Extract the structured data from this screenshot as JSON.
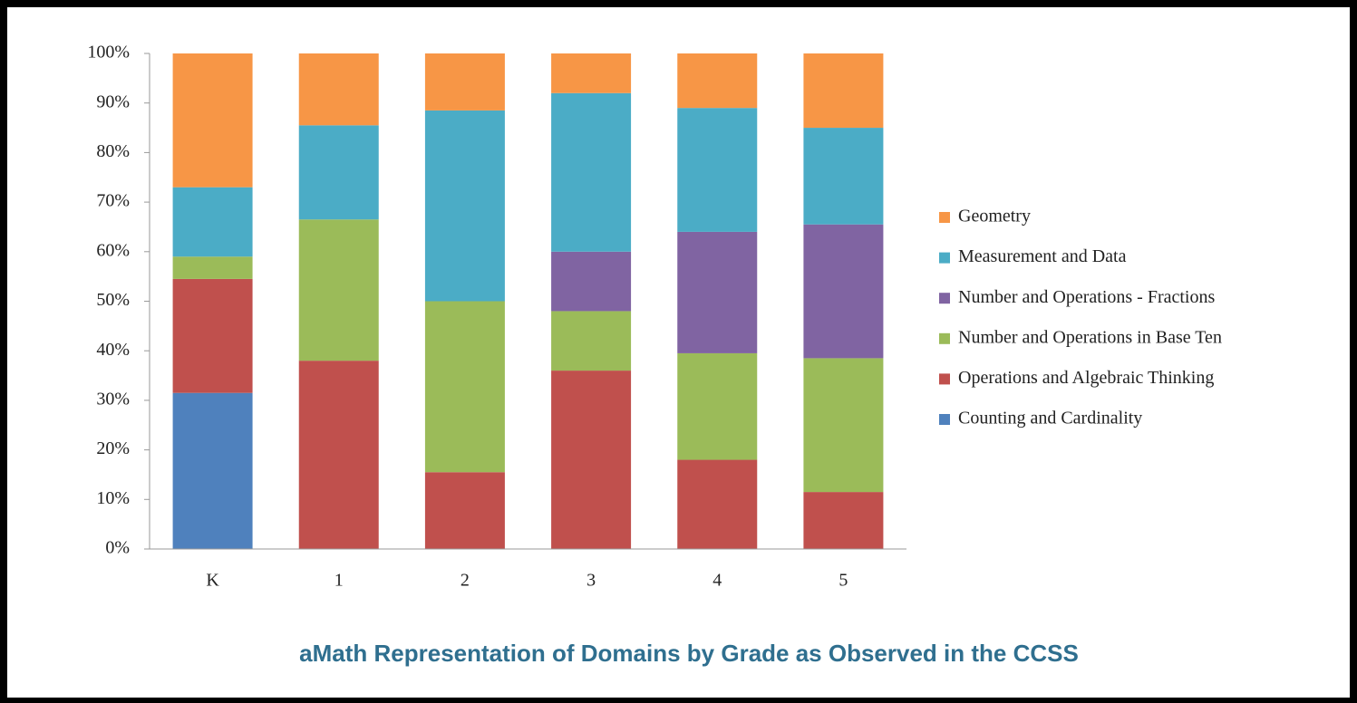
{
  "chart_data": {
    "type": "stacked_bar",
    "title": "aMath Representation of Domains by Grade as Observed in the CCSS",
    "categories": [
      "K",
      "1",
      "2",
      "3",
      "4",
      "5"
    ],
    "series": [
      {
        "name": "Counting and Cardinality",
        "color": "#4f81bd",
        "values": [
          31.5,
          0,
          0,
          0,
          0,
          0
        ]
      },
      {
        "name": "Operations and Algebraic Thinking",
        "color": "#c0504d",
        "values": [
          23,
          38,
          15.5,
          36,
          18,
          11.5
        ]
      },
      {
        "name": "Number and Operations in Base Ten",
        "color": "#9bbb59",
        "values": [
          4.5,
          28.5,
          34.5,
          12,
          21.5,
          27
        ]
      },
      {
        "name": "Number and Operations - Fractions",
        "color": "#8064a2",
        "values": [
          0,
          0,
          0,
          12,
          24.5,
          27
        ]
      },
      {
        "name": "Measurement and Data",
        "color": "#4bacc6",
        "values": [
          14,
          19,
          38.5,
          32,
          25,
          19.5
        ]
      },
      {
        "name": "Geometry",
        "color": "#f79646",
        "values": [
          27,
          14.5,
          11.5,
          8,
          11,
          15
        ]
      }
    ],
    "ylim": [
      0,
      100
    ],
    "yticks": [
      {
        "value": 0,
        "label": "0%"
      },
      {
        "value": 10,
        "label": "10%"
      },
      {
        "value": 20,
        "label": "20%"
      },
      {
        "value": 30,
        "label": "30%"
      },
      {
        "value": 40,
        "label": "40%"
      },
      {
        "value": 50,
        "label": "50%"
      },
      {
        "value": 60,
        "label": "60%"
      },
      {
        "value": 70,
        "label": "70%"
      },
      {
        "value": 80,
        "label": "80%"
      },
      {
        "value": 90,
        "label": "90%"
      },
      {
        "value": 100,
        "label": "100%"
      }
    ],
    "legend": "right"
  }
}
